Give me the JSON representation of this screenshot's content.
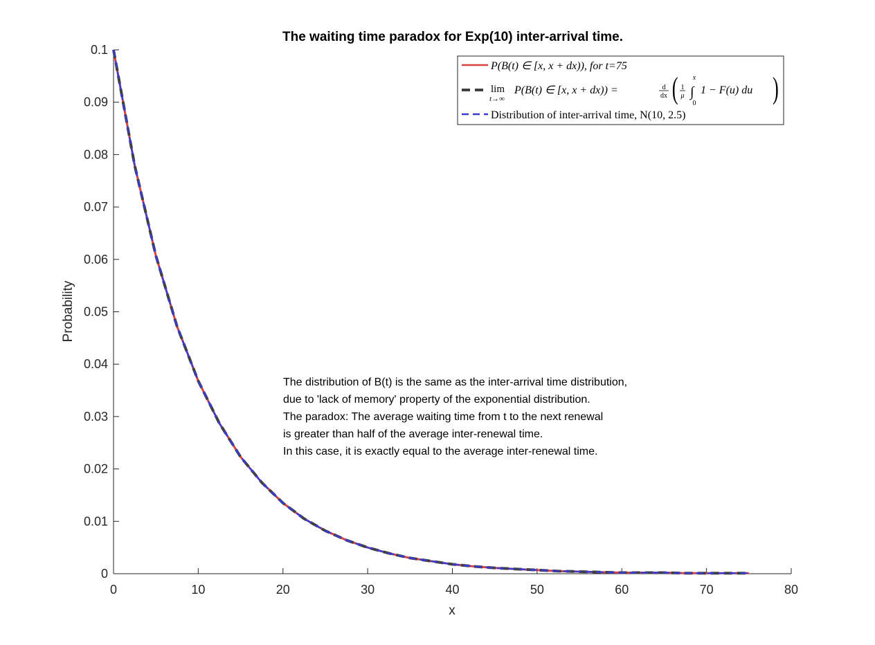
{
  "chart_data": {
    "type": "line",
    "title": "The waiting time paradox for Exp(10) inter-arrival time.",
    "xlabel": "x",
    "ylabel": "Probability",
    "xlim": [
      0,
      80
    ],
    "ylim": [
      0,
      0.1
    ],
    "x_ticks": [
      0,
      10,
      20,
      30,
      40,
      50,
      60,
      70,
      80
    ],
    "x_tick_labels": [
      "0",
      "10",
      "20",
      "30",
      "40",
      "50",
      "60",
      "70",
      "80"
    ],
    "y_ticks": [
      0,
      0.01,
      0.02,
      0.03,
      0.04,
      0.05,
      0.06,
      0.07,
      0.08,
      0.09,
      0.1
    ],
    "y_tick_labels": [
      "0",
      "0.01",
      "0.02",
      "0.03",
      "0.04",
      "0.05",
      "0.06",
      "0.07",
      "0.08",
      "0.09",
      "0.1"
    ],
    "grid": false,
    "legend_position": "top-right",
    "x": [
      0,
      2.5,
      5,
      7.5,
      10,
      12.5,
      15,
      17.5,
      20,
      22.5,
      25,
      27.5,
      30,
      32.5,
      35,
      37.5,
      40,
      42.5,
      45,
      47.5,
      50,
      52.5,
      55,
      57.5,
      60,
      62.5,
      65,
      67.5,
      70,
      72.5,
      75
    ],
    "series": [
      {
        "name": "P(B(t) ∈ [x, x + dx)), for t=75",
        "color": "#d9413f",
        "style": "solid",
        "values": [
          0.1,
          0.0779,
          0.0607,
          0.0472,
          0.0368,
          0.0287,
          0.0223,
          0.0174,
          0.0135,
          0.0105,
          0.0082,
          0.0064,
          0.005,
          0.0039,
          0.003,
          0.0024,
          0.0018,
          0.0014,
          0.0011,
          0.0009,
          0.0007,
          0.0005,
          0.0004,
          0.0003,
          0.0002,
          0.0002,
          0.0002,
          0.0001,
          0.0001,
          0.0001,
          0.0001
        ]
      },
      {
        "name": "lim_{t→∞} P(B(t) ∈ [x, x + dx)) = d/dx ( 1/μ ∫_0^x 1 − F(u) du )",
        "color": "#404040",
        "style": "dash",
        "values": [
          0.1,
          0.0779,
          0.0607,
          0.0472,
          0.0368,
          0.0287,
          0.0223,
          0.0174,
          0.0135,
          0.0105,
          0.0082,
          0.0064,
          0.005,
          0.0039,
          0.003,
          0.0024,
          0.0018,
          0.0014,
          0.0011,
          0.0009,
          0.0007,
          0.0005,
          0.0004,
          0.0003,
          0.0002,
          0.0002,
          0.0002,
          0.0001,
          0.0001,
          0.0001,
          0.0001
        ]
      },
      {
        "name": "Distribution of inter-arrival time, N(10, 2.5)",
        "color": "#3b3bd0",
        "style": "dash",
        "values": [
          0.1,
          0.0779,
          0.0607,
          0.0472,
          0.0368,
          0.0287,
          0.0223,
          0.0174,
          0.0135,
          0.0105,
          0.0082,
          0.0064,
          0.005,
          0.0039,
          0.003,
          0.0024,
          0.0018,
          0.0014,
          0.0011,
          0.0009,
          0.0007,
          0.0005,
          0.0004,
          0.0003,
          0.0002,
          0.0002,
          0.0002,
          0.0001,
          0.0001,
          0.0001,
          0.0001
        ]
      }
    ],
    "legend_text": {
      "l1_math": "P(B(t) ∈ [x, x + dx)), for t=75",
      "l2_lim": "lim",
      "l2_sub": "t→∞",
      "l2_rest": "P(B(t) ∈ [x, x + dx)) =",
      "l2_d": "d",
      "l2_dx": "dx",
      "l2_one": "1",
      "l2_mu": "μ",
      "l2_int": "∫",
      "l2_upper": "x",
      "l2_lower": "0",
      "l2_integrand": "1 − F(u) du",
      "l3": "Distribution of inter-arrival time, N(10, 2.5)"
    },
    "annotation": [
      "The distribution of B(t) is the same as the inter-arrival time distribution,",
      "due to 'lack of memory' property of the exponential distribution.",
      "The paradox: The average waiting time from t to the next renewal",
      "is greater than half of the average inter-renewal time.",
      "In this case, it is exactly equal to the average inter-renewal time."
    ]
  }
}
